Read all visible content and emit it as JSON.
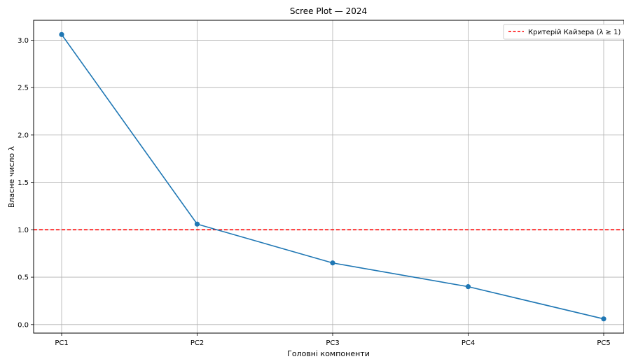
{
  "chart_data": {
    "type": "line",
    "title": "Scree Plot — 2024",
    "xlabel": "Головні компоненти",
    "ylabel": "Власне число λ",
    "categories": [
      "PC1",
      "PC2",
      "PC3",
      "PC4",
      "PC5"
    ],
    "series": [
      {
        "values": [
          3.06,
          1.06,
          0.65,
          0.4,
          0.06
        ],
        "color": "#1f77b4",
        "marker": "circle"
      }
    ],
    "reference_line": {
      "y": 1.0,
      "label": "Критерій Кайзера (λ ≥ 1)",
      "color": "#ff0000",
      "style": "dashed"
    },
    "yticks": [
      0.0,
      0.5,
      1.0,
      1.5,
      2.0,
      2.5,
      3.0
    ],
    "ytick_labels": [
      "0.0",
      "0.5",
      "1.0",
      "1.5",
      "2.0",
      "2.5",
      "3.0"
    ],
    "ylim": [
      -0.09,
      3.21
    ],
    "grid": true,
    "legend_position": "top-right"
  }
}
